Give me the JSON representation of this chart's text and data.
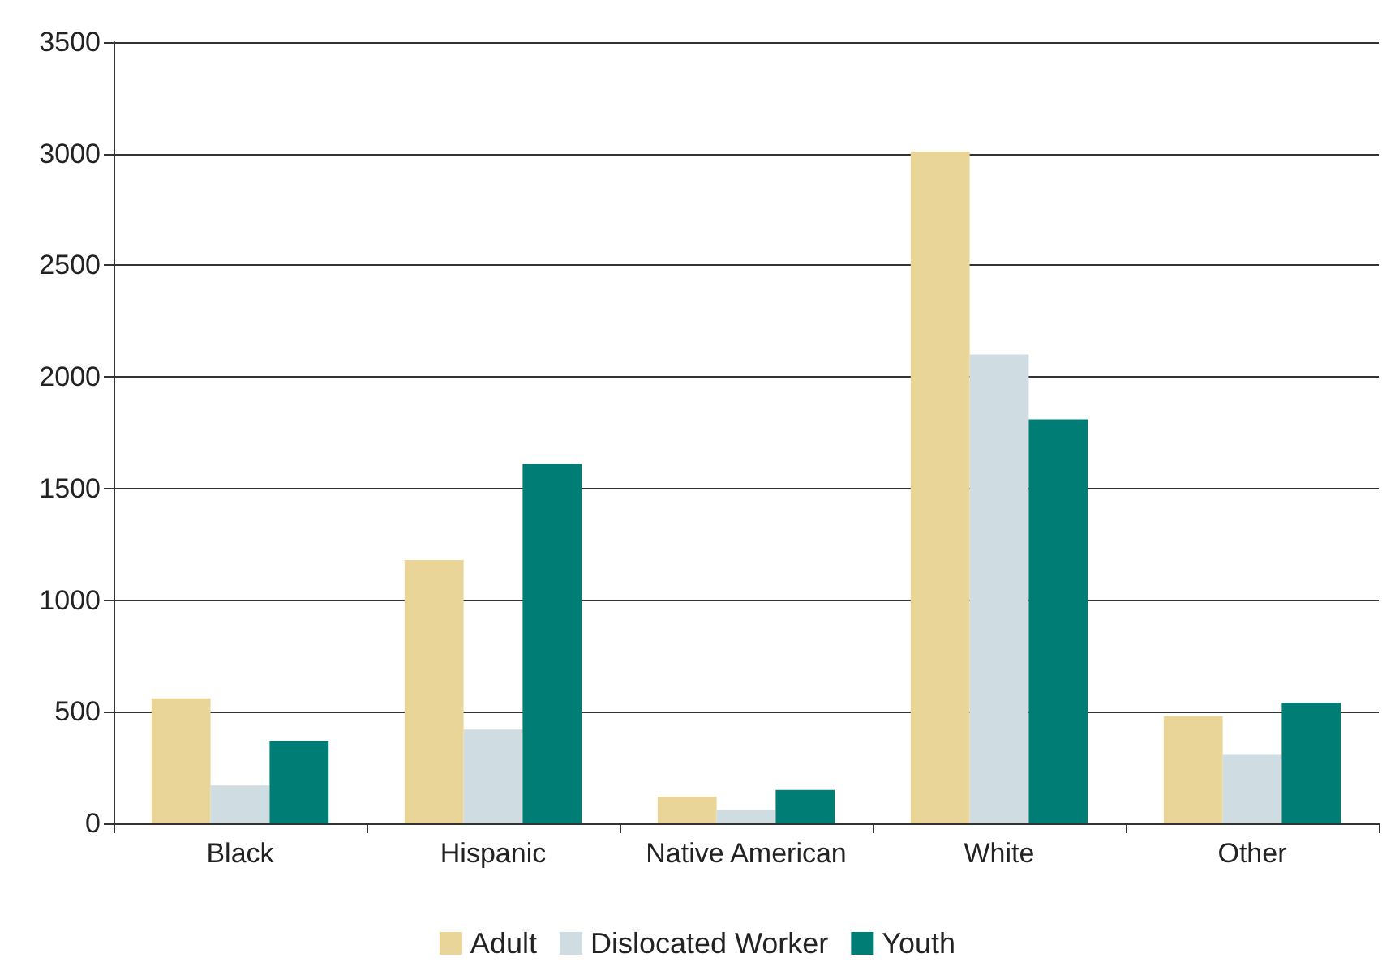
{
  "chart_data": {
    "type": "bar",
    "categories": [
      "Black",
      "Hispanic",
      "Native American",
      "White",
      "Other"
    ],
    "series": [
      {
        "name": "Adult",
        "color": "#e8d597",
        "values": [
          560,
          1180,
          120,
          3010,
          480
        ]
      },
      {
        "name": "Dislocated Worker",
        "color": "#cfdde2",
        "values": [
          170,
          420,
          60,
          2100,
          310
        ]
      },
      {
        "name": "Youth",
        "color": "#007d74",
        "values": [
          370,
          1610,
          150,
          1810,
          540
        ]
      }
    ],
    "ylim": [
      0,
      3500
    ],
    "yticks": [
      0,
      500,
      1000,
      1500,
      2000,
      2500,
      3000,
      3500
    ],
    "grid": "y",
    "legend": "bottom"
  }
}
